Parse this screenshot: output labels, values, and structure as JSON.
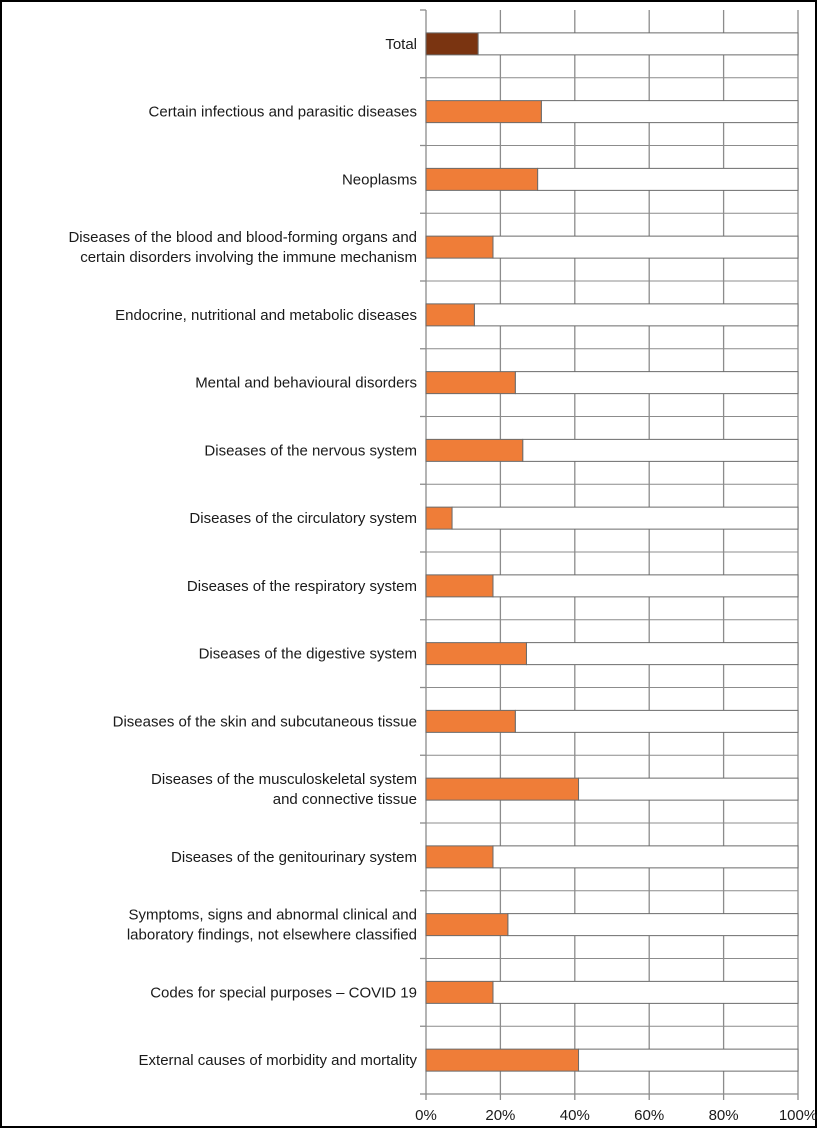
{
  "chart_data": {
    "type": "bar",
    "orientation": "horizontal",
    "stacked_to_100": true,
    "title": "",
    "xlabel": "",
    "ylabel": "",
    "xlim": [
      0,
      100
    ],
    "x_unit": "%",
    "grid": true,
    "legend": "none",
    "tick_labels": [
      "0%",
      "20%",
      "40%",
      "60%",
      "80%",
      "100%"
    ],
    "tick_values": [
      0,
      20,
      40,
      60,
      80,
      100
    ],
    "categories": [
      [
        "Total"
      ],
      [
        "Certain infectious and parasitic diseases"
      ],
      [
        "Neoplasms"
      ],
      [
        "Diseases of the blood and blood-forming organs and",
        "certain disorders involving the immune mechanism"
      ],
      [
        "Endocrine, nutritional and metabolic diseases"
      ],
      [
        "Mental and behavioural disorders"
      ],
      [
        "Diseases of the nervous system"
      ],
      [
        "Diseases of the circulatory system"
      ],
      [
        "Diseases of the respiratory system"
      ],
      [
        "Diseases of the digestive system"
      ],
      [
        "Diseases of the skin and subcutaneous tissue"
      ],
      [
        "Diseases of the musculoskeletal system",
        "and connective tissue"
      ],
      [
        "Diseases of the genitourinary system"
      ],
      [
        "Symptoms, signs and abnormal clinical and",
        "laboratory findings, not elsewhere classified"
      ],
      [
        "Codes for special purposes – COVID 19"
      ],
      [
        "External causes of morbidity and mortality"
      ]
    ],
    "values": [
      14,
      31,
      30,
      18,
      13,
      24,
      26,
      7,
      18,
      27,
      24,
      41,
      18,
      22,
      18,
      41
    ],
    "colors": {
      "total_bar": "#7a3411",
      "category_bar": "#ef7d38",
      "remainder": "#ffffff",
      "outline": "#6b6b6b",
      "grid": "#8c8c8c"
    }
  }
}
